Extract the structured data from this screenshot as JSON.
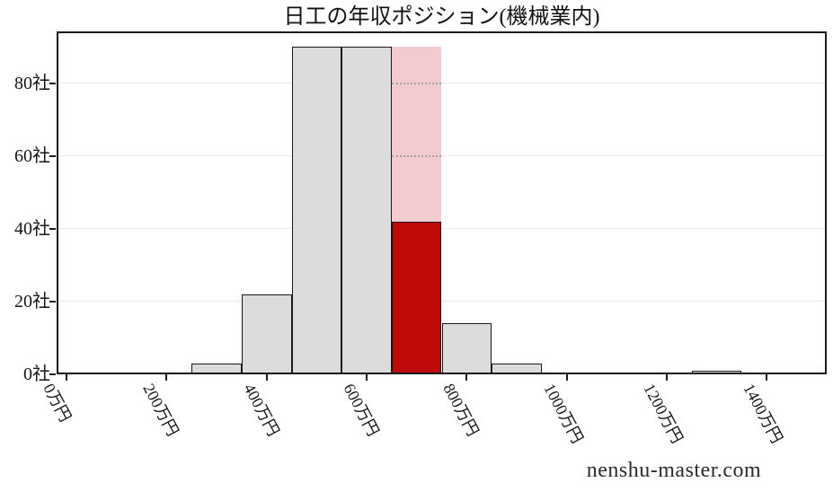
{
  "title": "日工の年収ポジション(機械業内)",
  "watermark": "nenshu-master.com",
  "chart_data": {
    "type": "bar",
    "subtype": "histogram",
    "title": "日工の年収ポジション(機械業内)",
    "xlabel": "",
    "ylabel": "",
    "x_unit": "万円",
    "y_unit": "社",
    "xlim": [
      -20,
      1520
    ],
    "ylim": [
      0,
      94.3
    ],
    "grid": "horizontal",
    "legend": "none",
    "bins": [
      {
        "x0": 250,
        "x1": 350,
        "count": 3,
        "highlight": false
      },
      {
        "x0": 350,
        "x1": 450,
        "count": 22,
        "highlight": false
      },
      {
        "x0": 450,
        "x1": 550,
        "count": 90,
        "highlight": false
      },
      {
        "x0": 550,
        "x1": 650,
        "count": 90,
        "highlight": false
      },
      {
        "x0": 650,
        "x1": 750,
        "count": 90,
        "highlight": true,
        "highlight_value": 42
      },
      {
        "x0": 750,
        "x1": 850,
        "count": 14,
        "highlight": false
      },
      {
        "x0": 850,
        "x1": 950,
        "count": 3,
        "highlight": false
      },
      {
        "x0": 1250,
        "x1": 1350,
        "count": 1,
        "highlight": false
      }
    ],
    "x_ticks": [
      {
        "value": 0,
        "label": "0万円"
      },
      {
        "value": 200,
        "label": "200万円"
      },
      {
        "value": 400,
        "label": "400万円"
      },
      {
        "value": 600,
        "label": "600万円"
      },
      {
        "value": 800,
        "label": "800万円"
      },
      {
        "value": 1000,
        "label": "1000万円"
      },
      {
        "value": 1200,
        "label": "1200万円"
      },
      {
        "value": 1400,
        "label": "1400万円"
      }
    ],
    "y_ticks": [
      {
        "value": 0,
        "label": "0社"
      },
      {
        "value": 20,
        "label": "20社"
      },
      {
        "value": 40,
        "label": "40社"
      },
      {
        "value": 60,
        "label": "60社"
      },
      {
        "value": 80,
        "label": "80社"
      }
    ],
    "colors": {
      "bar_fill": "#dcdcdc",
      "bar_edge": "#1a1a1a",
      "highlight_fill": "#f1cbce",
      "highlight_value_fill": "#c00a0a",
      "grid_solid": "#e8e8e8",
      "grid_dotted": "#a3a3a3",
      "axis_frame": "#1a1a1a",
      "text": "#161616"
    }
  }
}
